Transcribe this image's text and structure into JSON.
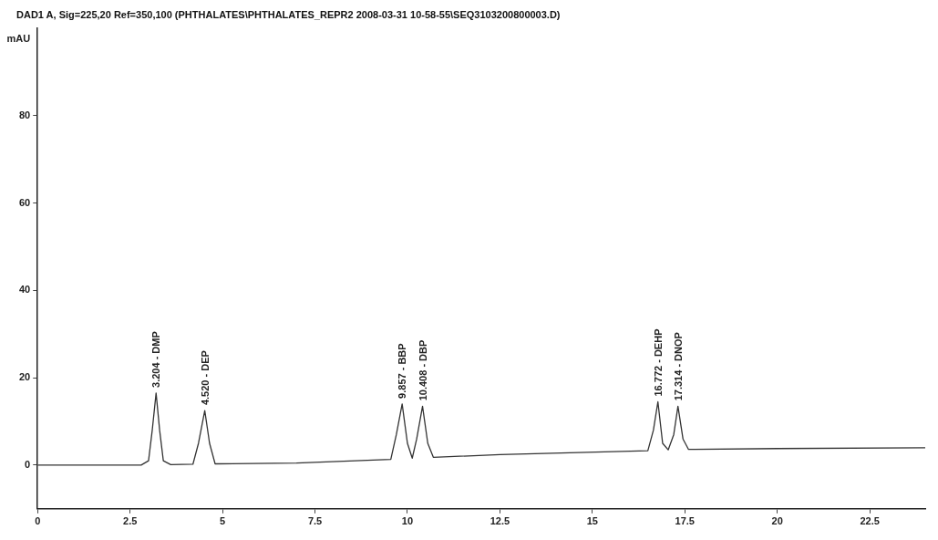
{
  "chart_data": {
    "type": "line",
    "title": "DAD1 A, Sig=225,20 Ref=350,100 (PHTHALATES\\PHTHALATES_REPR2 2008-03-31 10-58-55\\SEQ3103200800003.D)",
    "ylabel": "mAU",
    "x": [
      0,
      2.8,
      3.0,
      3.1,
      3.204,
      3.3,
      3.4,
      3.6,
      4.2,
      4.35,
      4.52,
      4.65,
      4.8,
      7.0,
      9.55,
      9.7,
      9.857,
      10.0,
      10.13,
      10.25,
      10.408,
      10.55,
      10.7,
      12.5,
      16.5,
      16.65,
      16.772,
      16.9,
      17.05,
      17.2,
      17.314,
      17.45,
      17.6,
      20,
      24
    ],
    "series": [
      {
        "color": "#333333",
        "values": [
          0,
          0,
          1,
          8,
          16.5,
          8,
          1,
          0.1,
          0.2,
          5,
          12.5,
          5,
          0.3,
          0.5,
          1.3,
          7,
          14,
          5,
          1.6,
          6,
          13.5,
          5,
          1.8,
          2.4,
          3.3,
          8,
          14.5,
          5,
          3.5,
          7,
          13.5,
          6,
          3.6,
          3.8,
          4
        ]
      }
    ],
    "xlim": [
      0,
      24
    ],
    "xticks": [
      0,
      2.5,
      5,
      7.5,
      10,
      12.5,
      15,
      17.5,
      20,
      22.5
    ],
    "ylim": [
      -10,
      100
    ],
    "yticks": [
      0,
      20,
      40,
      60,
      80
    ],
    "grid": false,
    "legend": false,
    "marker": "none",
    "line_style": "solid",
    "annotations": [
      {
        "text": "3.204 - DMP",
        "x": 3.204,
        "y": 16.5
      },
      {
        "text": "4.520 - DEP",
        "x": 4.52,
        "y": 12.5
      },
      {
        "text": "9.857 - BBP",
        "x": 9.857,
        "y": 14
      },
      {
        "text": "10.408 - DBP",
        "x": 10.408,
        "y": 13.5
      },
      {
        "text": "16.772 - DEHP",
        "x": 16.772,
        "y": 14.5
      },
      {
        "text": "17.314 - DNOP",
        "x": 17.314,
        "y": 13.5
      }
    ]
  }
}
